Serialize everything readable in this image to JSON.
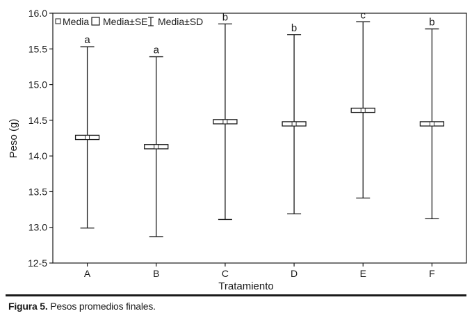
{
  "chart_data": {
    "type": "box",
    "title": "",
    "xlabel": "Tratamiento",
    "ylabel": "Peso (g)",
    "ylim": [
      12.5,
      16.0
    ],
    "yticks": [
      "12-5",
      "13.0",
      "13.5",
      "14.0",
      "14.5",
      "15.0",
      "15.5",
      "16.0"
    ],
    "ytick_values": [
      12.5,
      13.0,
      13.5,
      14.0,
      14.5,
      15.0,
      15.5,
      16.0
    ],
    "categories": [
      "A",
      "B",
      "C",
      "D",
      "E",
      "F"
    ],
    "mean": [
      14.26,
      14.13,
      14.48,
      14.45,
      14.64,
      14.45
    ],
    "se_low": [
      14.23,
      14.1,
      14.45,
      14.42,
      14.61,
      14.42
    ],
    "se_high": [
      14.29,
      14.16,
      14.51,
      14.48,
      14.67,
      14.48
    ],
    "sd_low": [
      12.99,
      12.87,
      13.11,
      13.19,
      13.41,
      13.12
    ],
    "sd_high": [
      15.53,
      15.39,
      15.85,
      15.7,
      15.88,
      15.78
    ],
    "group_letters": [
      "a",
      "a",
      "b",
      "b",
      "c",
      "b"
    ],
    "legend": {
      "placement": "top-left",
      "items": [
        "Media",
        "Media±SE",
        "Media±SD"
      ]
    },
    "grid": false
  },
  "caption": {
    "label": "Figura 5.",
    "text": " Pesos promedios finales."
  }
}
